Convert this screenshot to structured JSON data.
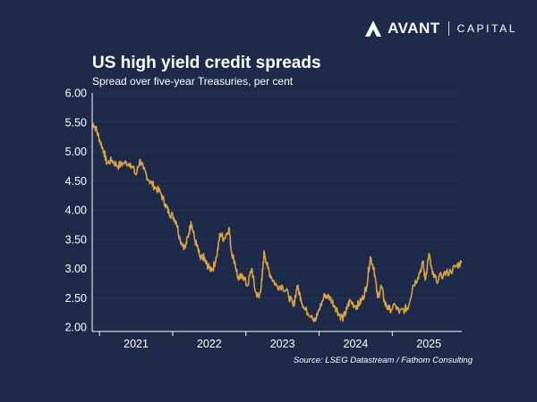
{
  "brand": {
    "name": "AVANT",
    "sub": "CAPITAL",
    "text_color": "#ffffff"
  },
  "colors": {
    "background": "#1e2a4a",
    "line": "#d9a441",
    "grid": "#43507a",
    "axis": "#ffffff"
  },
  "chart_data": {
    "type": "line",
    "title": "US high yield credit spreads",
    "subtitle": "Spread over five-year Treasuries, per cent",
    "xlabel": "",
    "ylabel": "",
    "ylim": [
      2.0,
      6.0
    ],
    "yticks": [
      "2.00",
      "2.50",
      "3.00",
      "3.50",
      "4.00",
      "4.50",
      "5.00",
      "5.50",
      "6.00"
    ],
    "xlim": [
      2020.4,
      2025.45
    ],
    "xticks": [
      {
        "label": "2021",
        "x": 2021.0
      },
      {
        "label": "2022",
        "x": 2022.0
      },
      {
        "label": "2023",
        "x": 2023.0
      },
      {
        "label": "2024",
        "x": 2024.0
      },
      {
        "label": "2025",
        "x": 2025.0
      }
    ],
    "grid": true,
    "series": [
      {
        "name": "US high yield spread",
        "x": [
          2020.4,
          2020.45,
          2020.5,
          2020.56,
          2020.6,
          2020.67,
          2020.75,
          2020.83,
          2020.92,
          2021.0,
          2021.05,
          2021.1,
          2021.18,
          2021.25,
          2021.33,
          2021.4,
          2021.45,
          2021.5,
          2021.55,
          2021.6,
          2021.67,
          2021.72,
          2021.75,
          2021.8,
          2021.85,
          2021.88,
          2021.92,
          2021.95,
          2022.0,
          2022.05,
          2022.1,
          2022.15,
          2022.2,
          2022.27,
          2022.3,
          2022.35,
          2022.4,
          2022.45,
          2022.52,
          2022.58,
          2022.63,
          2022.68,
          2022.72,
          2022.75,
          2022.8,
          2022.85,
          2022.92,
          2023.0,
          2023.08,
          2023.15,
          2023.2,
          2023.25,
          2023.3,
          2023.4,
          2023.45,
          2023.5,
          2023.58,
          2023.65,
          2023.72,
          2023.78,
          2023.83,
          2023.88,
          2023.92,
          2024.0,
          2024.05,
          2024.1,
          2024.15,
          2024.2,
          2024.25,
          2024.3,
          2024.35,
          2024.4,
          2024.45,
          2024.55,
          2024.6,
          2024.67,
          2024.72,
          2024.78,
          2024.85,
          2024.92,
          2024.95,
          2025.0,
          2025.05,
          2025.1,
          2025.2,
          2025.3,
          2025.38,
          2025.45
        ],
        "values": [
          5.5,
          5.4,
          5.2,
          5.0,
          4.8,
          4.85,
          4.75,
          4.8,
          4.8,
          4.6,
          4.85,
          4.7,
          4.5,
          4.4,
          4.3,
          4.1,
          3.95,
          3.9,
          3.8,
          3.5,
          3.35,
          3.6,
          3.8,
          3.5,
          3.3,
          3.15,
          3.2,
          3.1,
          3.0,
          3.0,
          3.2,
          3.6,
          3.5,
          3.7,
          3.3,
          3.1,
          2.8,
          2.9,
          2.7,
          3.0,
          2.6,
          2.5,
          2.8,
          3.3,
          3.0,
          2.85,
          2.7,
          2.7,
          2.55,
          2.35,
          2.7,
          2.5,
          2.3,
          2.2,
          2.1,
          2.3,
          2.55,
          2.5,
          2.35,
          2.2,
          2.15,
          2.3,
          2.45,
          2.35,
          2.4,
          2.5,
          2.7,
          3.2,
          3.0,
          2.5,
          2.7,
          2.4,
          2.3,
          2.35,
          2.25,
          2.3,
          2.35,
          2.7,
          2.85,
          3.1,
          2.8,
          3.25,
          2.9,
          2.8,
          2.9,
          2.95,
          3.05,
          3.1
        ]
      }
    ]
  },
  "source": "Source: LSEG Datastream / Fathom Consulting"
}
